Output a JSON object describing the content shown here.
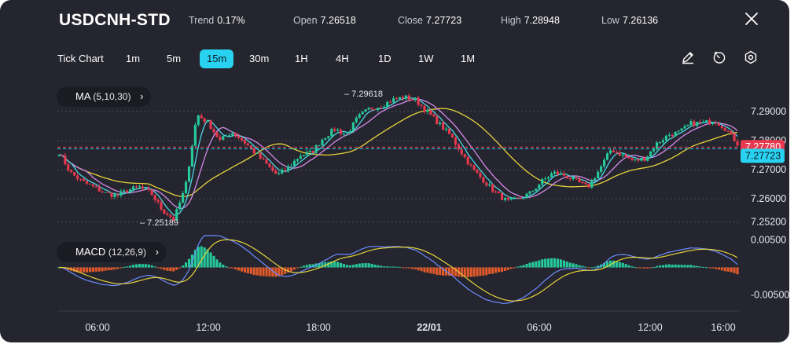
{
  "header": {
    "symbol": "USDCNH-STD",
    "trend_label": "Trend",
    "trend_value": "0.17%",
    "open_label": "Open",
    "open_value": "7.26518",
    "close_label": "Close",
    "close_value": "7.27723",
    "high_label": "High",
    "high_value": "7.28948",
    "low_label": "Low",
    "low_value": "7.26136"
  },
  "toolbar": {
    "chart_type": "Tick Chart",
    "timeframes": [
      "1m",
      "5m",
      "15m",
      "30m",
      "1H",
      "4H",
      "1D",
      "1W",
      "1M"
    ],
    "active_timeframe": "15m",
    "icons": [
      "pencil-icon",
      "clock-icon",
      "settings-icon",
      "close-icon"
    ]
  },
  "indicators": {
    "ma_name": "MA",
    "ma_params": "(5,10,30)",
    "macd_name": "MACD",
    "macd_params": "(12,26,9)"
  },
  "colors": {
    "background": "#24252e",
    "bull": "#26c99a",
    "bear": "#e8394f",
    "ma5": "#4fd6e8",
    "ma10": "#d48ae8",
    "ma30": "#e6d23c",
    "macd_line": "#6e8cff",
    "signal_line": "#e6d23c",
    "hist_pos": "#26c99a",
    "hist_neg": "#e25a2a",
    "accent": "#2ad2f2"
  },
  "chart_data": [
    {
      "type": "candlestick",
      "name": "USDCNH-STD 15m",
      "y_ticks": [
        "7.29000",
        "7.28000",
        "7.27000",
        "7.26000",
        "7.25200"
      ],
      "ylim": [
        7.2495,
        7.2992
      ],
      "x_tick_labels": [
        "06:00",
        "12:00",
        "18:00",
        "22/01",
        "06:00",
        "12:00",
        "16:00"
      ],
      "price_labels": {
        "ask": "7.27780",
        "last": "7.27723"
      },
      "annotations": {
        "high": "7.29618",
        "low": "7.25189"
      },
      "price_path": [
        7.276,
        7.269,
        7.266,
        7.264,
        7.262,
        7.261,
        7.263,
        7.264,
        7.262,
        7.256,
        7.253,
        7.264,
        7.289,
        7.286,
        7.28,
        7.283,
        7.28,
        7.276,
        7.272,
        7.268,
        7.271,
        7.275,
        7.276,
        7.281,
        7.284,
        7.282,
        7.288,
        7.291,
        7.292,
        7.294,
        7.295,
        7.294,
        7.29,
        7.286,
        7.282,
        7.276,
        7.27,
        7.266,
        7.262,
        7.259,
        7.26,
        7.262,
        7.266,
        7.269,
        7.268,
        7.266,
        7.264,
        7.27,
        7.277,
        7.275,
        7.273,
        7.274,
        7.279,
        7.282,
        7.283,
        7.286,
        7.286,
        7.287,
        7.284,
        7.279
      ]
    },
    {
      "type": "macd",
      "name": "MACD (12,26,9)",
      "y_ticks": [
        "0.00500",
        "-0.00500"
      ],
      "ylim": [
        -0.0068,
        0.0058
      ]
    }
  ]
}
